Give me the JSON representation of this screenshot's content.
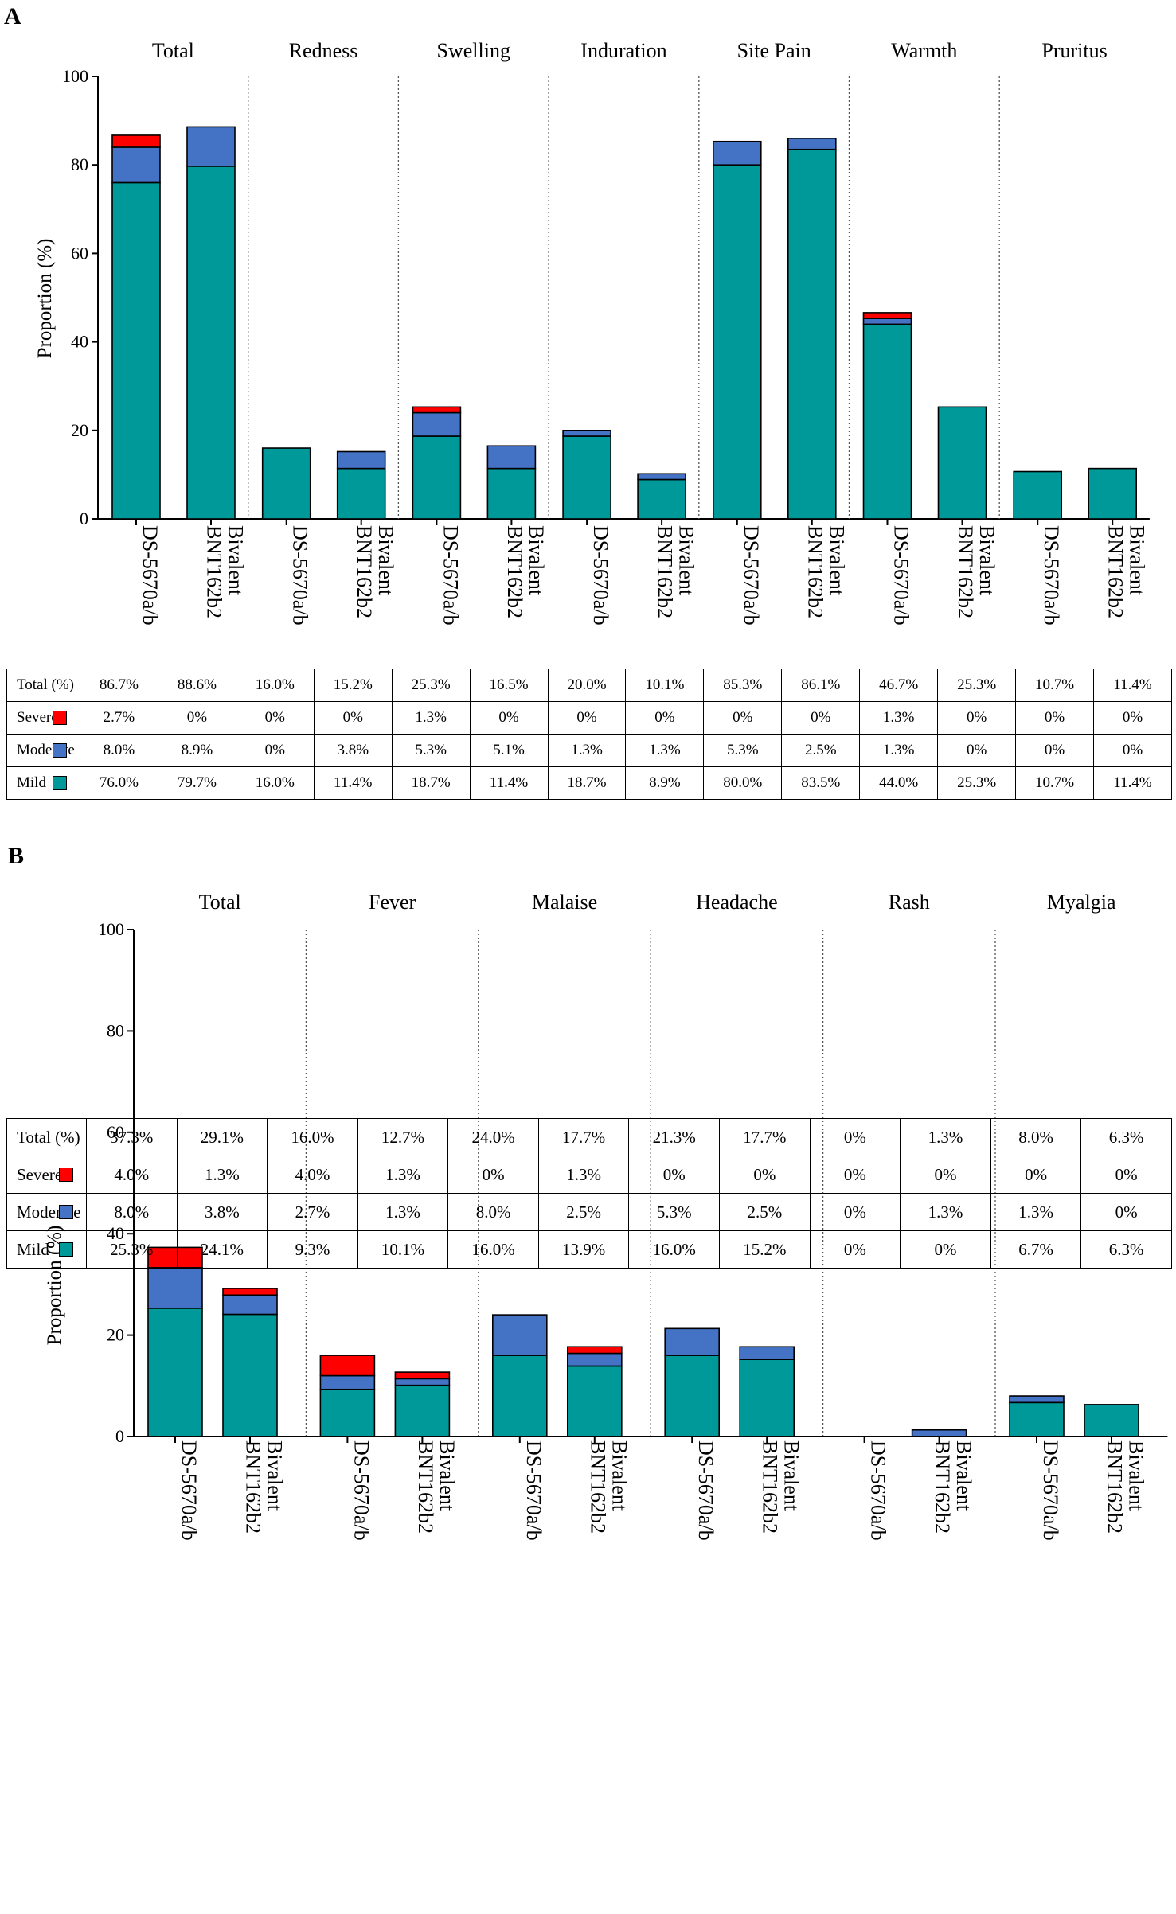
{
  "colors": {
    "severe": "#ff0000",
    "moderate": "#4472c4",
    "mild": "#009999"
  },
  "severity_labels": {
    "severe": "Severe",
    "moderate": "Moderate",
    "mild": "Mild",
    "total": "Total (%)"
  },
  "chart_data": [
    {
      "panel": "A",
      "type": "bar",
      "stacked": true,
      "ylabel": "Proportion (%)",
      "ylim": [
        0,
        100
      ],
      "yticks": [
        0,
        20,
        40,
        60,
        80,
        100
      ],
      "groups": [
        "Total",
        "Redness",
        "Swelling",
        "Induration",
        "Site Pain",
        "Warmth",
        "Pruritus"
      ],
      "bar_labels": [
        [
          "DS-5670a/b"
        ],
        [
          "Bivalent",
          "BNT162b2"
        ]
      ],
      "series": [
        {
          "name": "Mild",
          "values": [
            [
              76.0,
              79.7
            ],
            [
              16.0,
              11.4
            ],
            [
              18.7,
              11.4
            ],
            [
              18.7,
              8.9
            ],
            [
              80.0,
              83.5
            ],
            [
              44.0,
              25.3
            ],
            [
              10.7,
              11.4
            ]
          ]
        },
        {
          "name": "Moderate",
          "values": [
            [
              8.0,
              8.9
            ],
            [
              0,
              3.8
            ],
            [
              5.3,
              5.1
            ],
            [
              1.3,
              1.3
            ],
            [
              5.3,
              2.5
            ],
            [
              1.3,
              0
            ],
            [
              0,
              0
            ]
          ]
        },
        {
          "name": "Severe",
          "values": [
            [
              2.7,
              0
            ],
            [
              0,
              0
            ],
            [
              1.3,
              0
            ],
            [
              0,
              0
            ],
            [
              0,
              0
            ],
            [
              1.3,
              0
            ],
            [
              0,
              0
            ]
          ]
        }
      ],
      "table": {
        "total": [
          "86.7%",
          "88.6%",
          "16.0%",
          "15.2%",
          "25.3%",
          "16.5%",
          "20.0%",
          "10.1%",
          "85.3%",
          "86.1%",
          "46.7%",
          "25.3%",
          "10.7%",
          "11.4%"
        ],
        "severe": [
          "2.7%",
          "0%",
          "0%",
          "0%",
          "1.3%",
          "0%",
          "0%",
          "0%",
          "0%",
          "0%",
          "1.3%",
          "0%",
          "0%",
          "0%"
        ],
        "moderate": [
          "8.0%",
          "8.9%",
          "0%",
          "3.8%",
          "5.3%",
          "5.1%",
          "1.3%",
          "1.3%",
          "5.3%",
          "2.5%",
          "1.3%",
          "0%",
          "0%",
          "0%"
        ],
        "mild": [
          "76.0%",
          "79.7%",
          "16.0%",
          "11.4%",
          "18.7%",
          "11.4%",
          "18.7%",
          "8.9%",
          "80.0%",
          "83.5%",
          "44.0%",
          "25.3%",
          "10.7%",
          "11.4%"
        ]
      }
    },
    {
      "panel": "B",
      "type": "bar",
      "stacked": true,
      "ylabel": "Proportion (%)",
      "ylim": [
        0,
        100
      ],
      "yticks": [
        0,
        20,
        40,
        60,
        80,
        100
      ],
      "groups": [
        "Total",
        "Fever",
        "Malaise",
        "Headache",
        "Rash",
        "Myalgia"
      ],
      "bar_labels": [
        [
          "DS-5670a/b"
        ],
        [
          "Bivalent",
          "BNT162b2"
        ]
      ],
      "series": [
        {
          "name": "Mild",
          "values": [
            [
              25.3,
              24.1
            ],
            [
              9.3,
              10.1
            ],
            [
              16.0,
              13.9
            ],
            [
              16.0,
              15.2
            ],
            [
              0,
              0
            ],
            [
              6.7,
              6.3
            ]
          ]
        },
        {
          "name": "Moderate",
          "values": [
            [
              8.0,
              3.8
            ],
            [
              2.7,
              1.3
            ],
            [
              8.0,
              2.5
            ],
            [
              5.3,
              2.5
            ],
            [
              0,
              1.3
            ],
            [
              1.3,
              0
            ]
          ]
        },
        {
          "name": "Severe",
          "values": [
            [
              4.0,
              1.3
            ],
            [
              4.0,
              1.3
            ],
            [
              0,
              1.3
            ],
            [
              0,
              0
            ],
            [
              0,
              0
            ],
            [
              0,
              0
            ]
          ]
        }
      ],
      "table": {
        "total": [
          "37.3%",
          "29.1%",
          "16.0%",
          "12.7%",
          "24.0%",
          "17.7%",
          "21.3%",
          "17.7%",
          "0%",
          "1.3%",
          "8.0%",
          "6.3%"
        ],
        "severe": [
          "4.0%",
          "1.3%",
          "4.0%",
          "1.3%",
          "0%",
          "1.3%",
          "0%",
          "0%",
          "0%",
          "0%",
          "0%",
          "0%"
        ],
        "moderate": [
          "8.0%",
          "3.8%",
          "2.7%",
          "1.3%",
          "8.0%",
          "2.5%",
          "5.3%",
          "2.5%",
          "0%",
          "1.3%",
          "1.3%",
          "0%"
        ],
        "mild": [
          "25.3%",
          "24.1%",
          "9.3%",
          "10.1%",
          "16.0%",
          "13.9%",
          "16.0%",
          "15.2%",
          "0%",
          "0%",
          "6.7%",
          "6.3%"
        ]
      }
    }
  ]
}
